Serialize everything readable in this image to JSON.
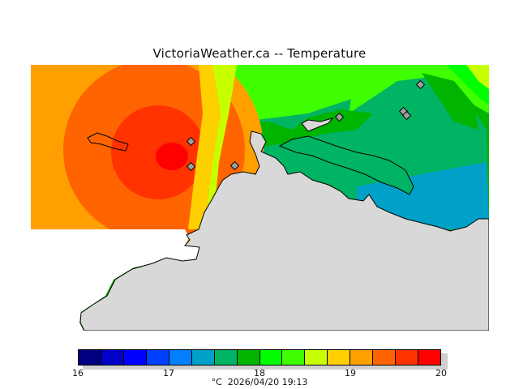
{
  "title": "VictoriaWeather.ca -- Temperature",
  "legend": {
    "ticks": [
      "16",
      "17",
      "18",
      "19",
      "20"
    ],
    "unit": "°C",
    "timestamp": "2026/04/20 19:13",
    "colors": [
      "#000080",
      "#0000c8",
      "#0000ff",
      "#0040ff",
      "#0080ff",
      "#00a0c8",
      "#00b464",
      "#00b400",
      "#00ff00",
      "#40ff00",
      "#c8ff00",
      "#ffd000",
      "#ffa000",
      "#ff6400",
      "#ff3200",
      "#ff0000"
    ]
  },
  "land_color": "#d8d8d8",
  "stations": [
    "station-1",
    "station-2",
    "station-3",
    "station-4",
    "station-5",
    "station-6",
    "station-7"
  ]
}
